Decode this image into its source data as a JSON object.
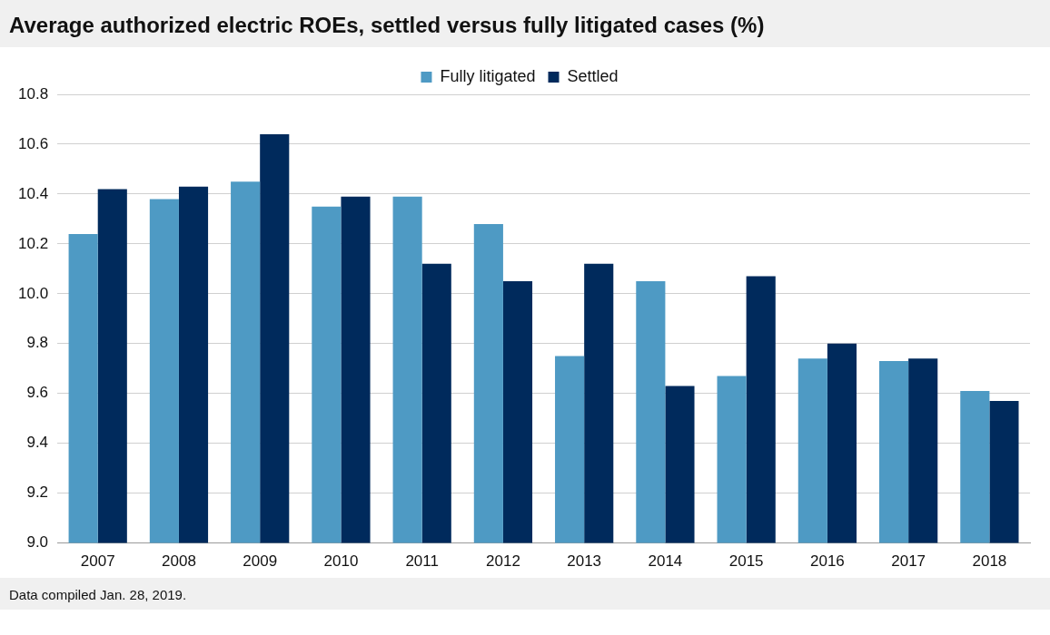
{
  "chart_data": {
    "type": "bar",
    "title": "Average authorized electric ROEs, settled versus fully litigated cases (%)",
    "categories": [
      "2007",
      "2008",
      "2009",
      "2010",
      "2011",
      "2012",
      "2013",
      "2014",
      "2015",
      "2016",
      "2017",
      "2018"
    ],
    "series": [
      {
        "name": "Fully litigated",
        "color": "#4e9ac4",
        "values": [
          10.24,
          10.38,
          10.45,
          10.35,
          10.39,
          10.28,
          9.75,
          10.05,
          9.67,
          9.74,
          9.73,
          9.61
        ]
      },
      {
        "name": "Settled",
        "color": "#002a5c",
        "values": [
          10.42,
          10.43,
          10.64,
          10.39,
          10.12,
          10.05,
          10.12,
          9.63,
          10.07,
          9.8,
          9.74,
          9.57
        ]
      }
    ],
    "ylim": [
      9.0,
      10.8
    ],
    "yticks": [
      {
        "value": 9.0,
        "label": "9.0"
      },
      {
        "value": 9.2,
        "label": "9.2"
      },
      {
        "value": 9.4,
        "label": "9.4"
      },
      {
        "value": 9.6,
        "label": "9.6"
      },
      {
        "value": 9.8,
        "label": "9.8"
      },
      {
        "value": 10.0,
        "label": "10.0"
      },
      {
        "value": 10.2,
        "label": "10.2"
      },
      {
        "value": 10.4,
        "label": "10.4"
      },
      {
        "value": 10.6,
        "label": "10.6"
      },
      {
        "value": 10.8,
        "label": "10.8"
      }
    ],
    "grid": "y",
    "legend": "top",
    "annotations": [
      "Data compiled Jan. 28, 2019."
    ]
  }
}
